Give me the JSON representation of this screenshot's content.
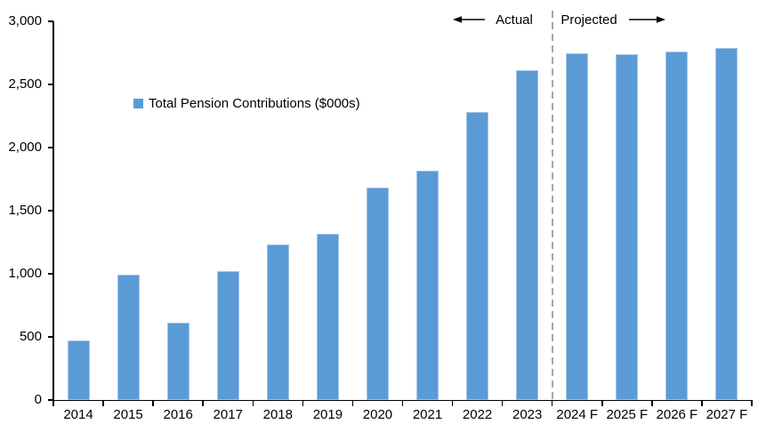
{
  "chart_data": {
    "type": "bar",
    "title": "",
    "legend": "Total Pension Contributions ($000s)",
    "categories": [
      "2014",
      "2015",
      "2016",
      "2017",
      "2018",
      "2019",
      "2020",
      "2021",
      "2022",
      "2023",
      "2024 F",
      "2025 F",
      "2026 F",
      "2027 F"
    ],
    "values": [
      470,
      990,
      610,
      1020,
      1230,
      1320,
      1680,
      1820,
      2280,
      2610,
      2750,
      2740,
      2760,
      2790
    ],
    "ylim": [
      0,
      3000
    ],
    "ytick_step": 500,
    "ytick_labels": [
      "0",
      "500",
      "1,000",
      "1,500",
      "2,000",
      "2,500",
      "3,000"
    ],
    "grid": "off",
    "legend_position": "upper-left-inside",
    "bar_color": "#5b9bd5",
    "divider_after_category": "2023",
    "divider_color": "#a6a6a6",
    "annotations": {
      "left_label": "Actual",
      "right_label": "Projected"
    }
  }
}
